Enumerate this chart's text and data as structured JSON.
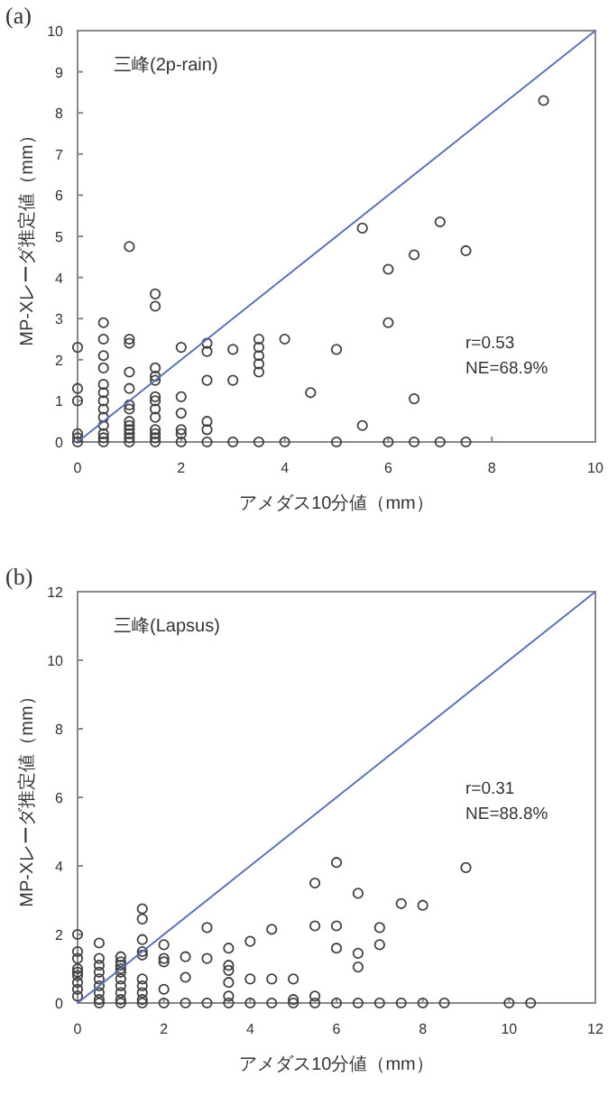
{
  "chart_data": [
    {
      "type": "scatter",
      "title": "(a)",
      "xlabel": "アメダス10分値（mm）",
      "ylabel": "MP-Xレーダ推定値（mm）",
      "xlim": [
        0,
        10
      ],
      "ylim": [
        0,
        10
      ],
      "xticks": [
        0,
        2,
        4,
        6,
        8,
        10
      ],
      "yticks": [
        0,
        1,
        2,
        3,
        4,
        5,
        6,
        7,
        8,
        9,
        10
      ],
      "grid": false,
      "annotations": [
        "三峰(2p-rain)",
        "r=0.53",
        "NE=68.9%"
      ],
      "series": [
        {
          "marker": "circle",
          "color": "#404040",
          "x": [
            0,
            0,
            0,
            0,
            0,
            0,
            0.5,
            0.5,
            0.5,
            0.5,
            0.5,
            0.5,
            0.5,
            0.5,
            0.5,
            0.5,
            0.5,
            0.5,
            0.5,
            1,
            1,
            1,
            1,
            1,
            1,
            1,
            1,
            1,
            1,
            1,
            1,
            1,
            1.5,
            1.5,
            1.5,
            1.5,
            1.5,
            1.5,
            1.5,
            1.5,
            1.5,
            1.5,
            1.5,
            1.5,
            1.5,
            2,
            2,
            2,
            2,
            2,
            2,
            2.5,
            2.5,
            2.5,
            2.5,
            2.5,
            2.5,
            3,
            3,
            3,
            3.5,
            3.5,
            3.5,
            3.5,
            3.5,
            3.5,
            4,
            4,
            4.5,
            5,
            5,
            5.5,
            5.5,
            6,
            6,
            6,
            6.5,
            6.5,
            6.5,
            7,
            7,
            7.5,
            7.5,
            9
          ],
          "values": [
            0,
            0.1,
            0.2,
            1.0,
            1.3,
            2.3,
            0,
            0.1,
            0.2,
            0.4,
            0.6,
            0.8,
            1.0,
            1.2,
            1.4,
            1.8,
            2.1,
            2.5,
            2.9,
            0,
            0.1,
            0.2,
            0.3,
            0.4,
            0.5,
            0.8,
            0.9,
            1.3,
            1.7,
            2.4,
            2.5,
            4.75,
            0,
            0.1,
            0.2,
            0.3,
            0.6,
            0.8,
            1.0,
            1.1,
            1.5,
            1.6,
            1.8,
            3.3,
            3.6,
            0,
            0.2,
            0.3,
            0.7,
            1.1,
            2.3,
            0,
            0.3,
            0.5,
            1.5,
            2.2,
            2.4,
            0,
            1.5,
            2.25,
            0,
            1.7,
            1.9,
            2.1,
            2.3,
            2.5,
            0,
            2.5,
            1.2,
            0,
            2.25,
            0.4,
            5.2,
            0,
            2.9,
            4.2,
            0,
            1.05,
            4.55,
            0,
            5.35,
            0,
            4.65,
            8.3
          ]
        },
        {
          "type": "line",
          "color": "#5b73b5",
          "x": [
            0,
            10
          ],
          "values": [
            0,
            10
          ]
        }
      ]
    },
    {
      "type": "scatter",
      "title": "(b)",
      "xlabel": "アメダス10分値（mm）",
      "ylabel": "MP-Xレーダ推定値（mm）",
      "xlim": [
        0,
        12
      ],
      "ylim": [
        0,
        12
      ],
      "xticks": [
        0,
        2,
        4,
        6,
        8,
        10,
        12
      ],
      "yticks": [
        0,
        2,
        4,
        6,
        8,
        10,
        12
      ],
      "grid": false,
      "annotations": [
        "三峰(Lapsus)",
        "r=0.31",
        "NE=88.8%"
      ],
      "series": [
        {
          "marker": "circle",
          "color": "#404040",
          "x": [
            0,
            0,
            0,
            0,
            0,
            0,
            0,
            0,
            0,
            0.5,
            0.5,
            0.5,
            0.5,
            0.5,
            0.5,
            0.5,
            0.5,
            0.5,
            1,
            1,
            1,
            1,
            1,
            1,
            1,
            1,
            1,
            1,
            1.5,
            1.5,
            1.5,
            1.5,
            1.5,
            1.5,
            1.5,
            1.5,
            1.5,
            1.5,
            2,
            2,
            2,
            2,
            2,
            2.5,
            2.5,
            2.5,
            3,
            3,
            3,
            3.5,
            3.5,
            3.5,
            3.5,
            3.5,
            3.5,
            4,
            4,
            4,
            4.5,
            4.5,
            4.5,
            5,
            5,
            5,
            5.5,
            5.5,
            5.5,
            5.5,
            6,
            6,
            6,
            6,
            6.5,
            6.5,
            6.5,
            6.5,
            7,
            7,
            7,
            7.5,
            7.5,
            8,
            8,
            8.5,
            9,
            10,
            10.5
          ],
          "values": [
            0.2,
            0.4,
            0.6,
            0.8,
            0.9,
            1.0,
            1.3,
            1.5,
            2.0,
            0,
            0.1,
            0.3,
            0.5,
            0.7,
            0.9,
            1.1,
            1.3,
            1.75,
            0,
            0.1,
            0.3,
            0.5,
            0.7,
            0.9,
            1.0,
            1.1,
            1.2,
            1.35,
            0,
            0.1,
            0.3,
            0.5,
            0.7,
            1.4,
            1.5,
            1.85,
            2.45,
            2.75,
            0,
            0.4,
            1.2,
            1.3,
            1.7,
            0,
            0.75,
            1.35,
            0,
            1.3,
            2.2,
            0,
            0.2,
            0.6,
            0.95,
            1.1,
            1.6,
            0,
            0.7,
            1.8,
            0,
            0.7,
            2.15,
            0,
            0.1,
            0.7,
            0,
            0.2,
            2.25,
            3.5,
            0,
            1.6,
            2.25,
            4.1,
            0,
            1.05,
            1.45,
            3.2,
            0,
            1.7,
            2.2,
            0,
            2.9,
            0,
            2.85,
            0,
            3.95,
            0,
            0
          ]
        },
        {
          "type": "line",
          "color": "#5b73b5",
          "x": [
            0,
            12
          ],
          "values": [
            0,
            12
          ]
        }
      ]
    }
  ]
}
